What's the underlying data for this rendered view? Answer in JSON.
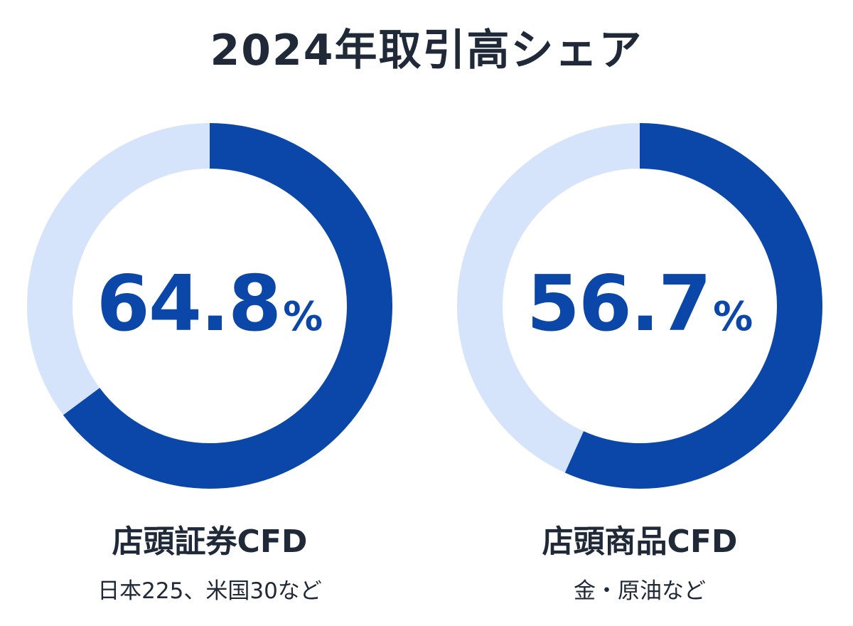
{
  "title": "2024年取引高シェア",
  "colors": {
    "share": "#0b47a8",
    "remainder": "#d6e4fb",
    "text": "#1f2937"
  },
  "chart_data": [
    {
      "type": "pie",
      "variant": "donut",
      "label": "店頭証券CFD",
      "sublabel": "日本225、米国30など",
      "value_text": "64.8",
      "unit": "%",
      "values": [
        64.8,
        35.2
      ]
    },
    {
      "type": "pie",
      "variant": "donut",
      "label": "店頭商品CFD",
      "sublabel": "金・原油など",
      "value_text": "56.7",
      "unit": "%",
      "values": [
        56.7,
        43.3
      ]
    }
  ]
}
